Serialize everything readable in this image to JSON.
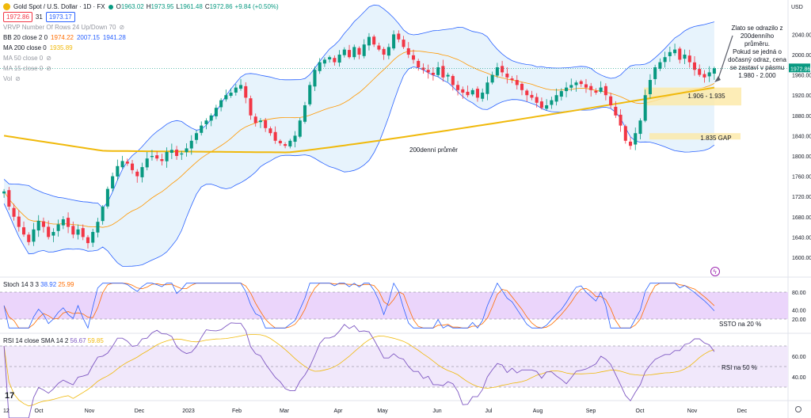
{
  "header": {
    "symbol_title": "Gold Spot / U.S. Dollar · 1D · FX",
    "ohlc": [
      {
        "label": "O",
        "value": "1963.02"
      },
      {
        "label": "H",
        "value": "1973.95"
      },
      {
        "label": "L",
        "value": "1961.48"
      },
      {
        "label": "C",
        "value": "1972.86"
      },
      {
        "label": "",
        "value": "+9.84 (+0.50%)"
      }
    ],
    "sell_price": "1972.86",
    "spread": "31",
    "buy_price": "1973.17",
    "indicators": [
      {
        "text": "VRVP Number Of Rows 24 Up/Down 70",
        "muted": true
      },
      {
        "text": "BB 20 close 2 0",
        "values": [
          "1974.22",
          "2007.15",
          "1941.28"
        ]
      },
      {
        "text": "MA 200 close 0",
        "values": [
          "1935.89"
        ]
      },
      {
        "text": "MA 50 close 0",
        "muted": true
      },
      {
        "text": "MA 15 close 0",
        "muted": true
      },
      {
        "text": "Vol",
        "muted": true
      }
    ],
    "stoch_label": "Stoch 14 3 3",
    "stoch_values": [
      "38.92",
      "25.99"
    ],
    "rsi_label": "RSI 14 close SMA 14 2",
    "rsi_values": [
      "56.67",
      "59.85"
    ]
  },
  "currency": "USD",
  "last_price_tag": "1972.86",
  "colors": {
    "up": "#089981",
    "down": "#f23645",
    "bb_fill": "#ddeefb",
    "bb_line": "#2962ff",
    "ma200": "#f0b90b",
    "basis": "#ff9800",
    "zone": "#fde9a5",
    "stoch_bg": "#e9d0fb",
    "rsi_bg": "#f1e8fb",
    "rsi_line": "#7e57c2",
    "k_line": "#2962ff",
    "d_line": "#ff6d00"
  },
  "annotations": {
    "main_note": [
      "Zlato se odrazilo z",
      "200denního",
      "průměru.",
      "Pokud se jedná o",
      "dočasný odraz, cena",
      "se zastaví v pásmu",
      "1.980 - 2.000"
    ],
    "zone1": "1.906 - 1.935",
    "zone2": "1.835 GAP",
    "ma_label": "200denní průměr",
    "stoch_note": "SSTO na 20 %",
    "rsi_note": "RSI na 50 %"
  },
  "chart_data": {
    "type": "candlestick",
    "price_axis_ticks": [
      2040,
      2000,
      1960,
      1920,
      1880,
      1840,
      1800,
      1760,
      1720,
      1680,
      1640,
      1600
    ],
    "stoch_axis_ticks": [
      80,
      40,
      20
    ],
    "stoch_axis_labels": [
      "80.00",
      "40.00",
      "20.00"
    ],
    "rsi_axis_ticks": [
      60,
      40
    ],
    "rsi_axis_labels": [
      "60.00",
      "40.00"
    ],
    "time_axis_labels": [
      "12",
      "Oct",
      "Nov",
      "Dec",
      "2023",
      "Feb",
      "Mar",
      "Apr",
      "May",
      "Jun",
      "Jul",
      "Aug",
      "Sep",
      "Oct",
      "Nov",
      "Dec"
    ],
    "close_series": [
      1730,
      1700,
      1680,
      1660,
      1645,
      1630,
      1655,
      1672,
      1660,
      1640,
      1650,
      1665,
      1675,
      1660,
      1645,
      1655,
      1640,
      1628,
      1650,
      1670,
      1700,
      1735,
      1760,
      1780,
      1790,
      1785,
      1772,
      1760,
      1778,
      1795,
      1800,
      1795,
      1790,
      1808,
      1812,
      1800,
      1805,
      1815,
      1830,
      1845,
      1860,
      1870,
      1880,
      1895,
      1910,
      1920,
      1925,
      1935,
      1940,
      1915,
      1880,
      1865,
      1870,
      1855,
      1845,
      1830,
      1825,
      1820,
      1830,
      1840,
      1870,
      1900,
      1940,
      1970,
      1985,
      1990,
      1995,
      1985,
      2000,
      2010,
      1995,
      2015,
      2000,
      2020,
      2035,
      2020,
      2010,
      2000,
      2015,
      2040,
      2030,
      2015,
      2000,
      1990,
      1975,
      1970,
      1965,
      1960,
      1975,
      1955,
      1960,
      1940,
      1930,
      1925,
      1920,
      1930,
      1915,
      1925,
      1945,
      1960,
      1975,
      1965,
      1955,
      1950,
      1940,
      1930,
      1920,
      1915,
      1905,
      1895,
      1900,
      1910,
      1920,
      1928,
      1935,
      1940,
      1945,
      1942,
      1935,
      1930,
      1925,
      1935,
      1920,
      1900,
      1880,
      1860,
      1830,
      1820,
      1845,
      1870,
      1920,
      1950,
      1975,
      1985,
      1995,
      2005,
      2010,
      1990,
      2000,
      1985,
      1970,
      1960,
      1955,
      1965,
      1973
    ]
  }
}
